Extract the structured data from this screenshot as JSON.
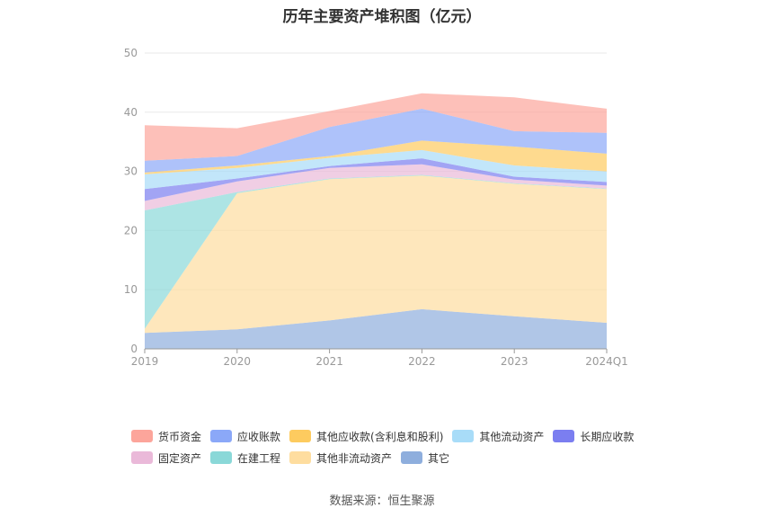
{
  "title": "历年主要资产堆积图（亿元）",
  "source": "数据来源：恒生聚源",
  "chart_data": {
    "type": "area",
    "stacked": true,
    "categories": [
      "2019",
      "2020",
      "2021",
      "2022",
      "2023",
      "2024Q1"
    ],
    "ylim": [
      0,
      50
    ],
    "yticks": [
      0,
      10,
      20,
      30,
      40,
      50
    ],
    "grid": true,
    "legend_position": "bottom",
    "series": [
      {
        "name": "其它",
        "color": "#8eaedd",
        "values": [
          2.7,
          3.3,
          4.8,
          6.7,
          5.5,
          4.4
        ]
      },
      {
        "name": "其他非流动资产",
        "color": "#fedd9f",
        "values": [
          0.7,
          23.0,
          23.9,
          22.6,
          22.4,
          22.6
        ]
      },
      {
        "name": "在建工程",
        "color": "#8ad8d8",
        "values": [
          20.0,
          0.2,
          0.1,
          0.1,
          0.1,
          0.1
        ]
      },
      {
        "name": "固定资产",
        "color": "#eab9d9",
        "values": [
          1.6,
          1.8,
          1.8,
          1.8,
          0.6,
          0.5
        ]
      },
      {
        "name": "长期应收款",
        "color": "#7b7ef0",
        "values": [
          2.0,
          0.5,
          0.3,
          1.0,
          0.5,
          0.6
        ]
      },
      {
        "name": "其他流动资产",
        "color": "#a8dcf8",
        "values": [
          2.5,
          1.8,
          1.4,
          1.4,
          1.9,
          1.8
        ]
      },
      {
        "name": "其他应收款(含利息和股利)",
        "color": "#fdcb5f",
        "values": [
          0.3,
          0.4,
          0.3,
          1.6,
          3.2,
          3.0
        ]
      },
      {
        "name": "应收账款",
        "color": "#8ba8f8",
        "values": [
          2.0,
          1.6,
          4.9,
          5.4,
          2.6,
          3.5
        ]
      },
      {
        "name": "货币资金",
        "color": "#fca59b",
        "values": [
          6.0,
          4.7,
          2.7,
          2.6,
          5.7,
          4.1
        ]
      }
    ],
    "legend_order": [
      [
        "货币资金",
        "应收账款",
        "其他应收款(含利息和股利)",
        "其他流动资产",
        "长期应收款"
      ],
      [
        "固定资产",
        "在建工程",
        "其他非流动资产",
        "其它"
      ]
    ]
  }
}
